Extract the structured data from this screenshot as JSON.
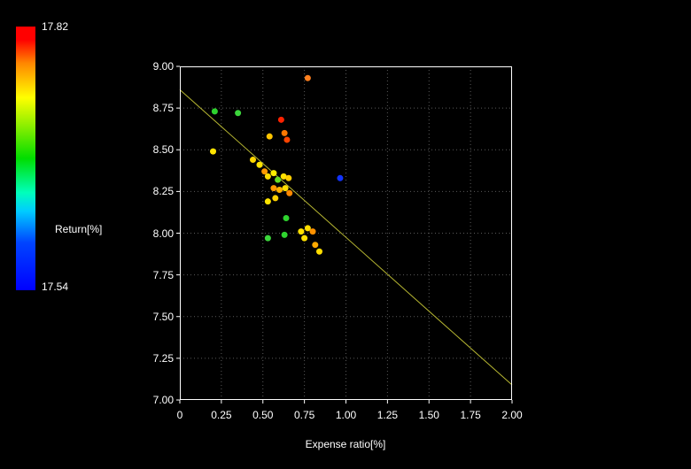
{
  "page": {
    "background": "#000000"
  },
  "colorbar": {
    "max_label": "17.82",
    "min_label": "17.54",
    "title": "Return[%]",
    "gradient": [
      "#ff0000 0%",
      "#ff0000 5%",
      "#ff8800 14%",
      "#ffff00 27%",
      "#88ee00 38%",
      "#00dd00 50%",
      "#00ffbb 63%",
      "#00ccff 70%",
      "#0044ff 82%",
      "#0000ff 100%"
    ]
  },
  "chart_data": {
    "type": "scatter",
    "title": "",
    "xlabel": "Expense ratio[%]",
    "ylabel": "Return[%]",
    "xlim": [
      0,
      2.0
    ],
    "ylim": [
      7.0,
      9.0
    ],
    "grid": true,
    "grid_color": "#5a5a5a",
    "color_scale": {
      "min": 17.54,
      "max": 17.82,
      "scheme": "rainbow (blue=low, red=high)"
    },
    "x_ticks": [
      {
        "v": 0.0,
        "label": "0"
      },
      {
        "v": 0.25,
        "label": "0.25"
      },
      {
        "v": 0.5,
        "label": "0.50"
      },
      {
        "v": 0.75,
        "label": "0.75"
      },
      {
        "v": 1.0,
        "label": "1.00"
      },
      {
        "v": 1.25,
        "label": "1.25"
      },
      {
        "v": 1.5,
        "label": "1.50"
      },
      {
        "v": 1.75,
        "label": "1.75"
      },
      {
        "v": 2.0,
        "label": "2.00"
      }
    ],
    "y_ticks": [
      {
        "v": 9.0,
        "label": "9.00"
      },
      {
        "v": 8.75,
        "label": "8.75"
      },
      {
        "v": 8.5,
        "label": "8.50"
      },
      {
        "v": 8.25,
        "label": "8.25"
      },
      {
        "v": 8.0,
        "label": "8.00"
      },
      {
        "v": 7.75,
        "label": "7.75"
      },
      {
        "v": 7.5,
        "label": "7.50"
      },
      {
        "v": 7.25,
        "label": "7.25"
      },
      {
        "v": 7.0,
        "label": "7.00"
      }
    ],
    "trend_line": {
      "x1": 0.0,
      "y1": 8.86,
      "x2": 2.0,
      "y2": 7.09,
      "color": "#b8b832"
    },
    "points": [
      {
        "x": 0.77,
        "y": 8.93,
        "c": "#ff7f1e"
      },
      {
        "x": 0.21,
        "y": 8.73,
        "c": "#2ed32e"
      },
      {
        "x": 0.35,
        "y": 8.72,
        "c": "#3cd63c"
      },
      {
        "x": 0.61,
        "y": 8.68,
        "c": "#ff2200"
      },
      {
        "x": 0.63,
        "y": 8.6,
        "c": "#ff7700"
      },
      {
        "x": 0.645,
        "y": 8.56,
        "c": "#ff4400"
      },
      {
        "x": 0.54,
        "y": 8.58,
        "c": "#ffc400"
      },
      {
        "x": 0.2,
        "y": 8.49,
        "c": "#ffe400"
      },
      {
        "x": 0.44,
        "y": 8.44,
        "c": "#ffd700"
      },
      {
        "x": 0.48,
        "y": 8.41,
        "c": "#ffe400"
      },
      {
        "x": 0.51,
        "y": 8.37,
        "c": "#ff9900"
      },
      {
        "x": 0.53,
        "y": 8.34,
        "c": "#ffdd00"
      },
      {
        "x": 0.565,
        "y": 8.36,
        "c": "#ffee00"
      },
      {
        "x": 0.59,
        "y": 8.32,
        "c": "#66dd22"
      },
      {
        "x": 0.625,
        "y": 8.34,
        "c": "#ffe000"
      },
      {
        "x": 0.655,
        "y": 8.33,
        "c": "#ffcc00"
      },
      {
        "x": 0.965,
        "y": 8.33,
        "c": "#1133ff"
      },
      {
        "x": 0.565,
        "y": 8.27,
        "c": "#ff9900"
      },
      {
        "x": 0.6,
        "y": 8.26,
        "c": "#ffb300"
      },
      {
        "x": 0.635,
        "y": 8.27,
        "c": "#ffdd00"
      },
      {
        "x": 0.66,
        "y": 8.24,
        "c": "#ff8800"
      },
      {
        "x": 0.53,
        "y": 8.19,
        "c": "#ffe400"
      },
      {
        "x": 0.575,
        "y": 8.21,
        "c": "#ffd000"
      },
      {
        "x": 0.64,
        "y": 8.09,
        "c": "#2ed32e"
      },
      {
        "x": 0.77,
        "y": 8.03,
        "c": "#ffdd00"
      },
      {
        "x": 0.8,
        "y": 8.01,
        "c": "#ff9100"
      },
      {
        "x": 0.73,
        "y": 8.01,
        "c": "#ffe000"
      },
      {
        "x": 0.63,
        "y": 7.99,
        "c": "#2fd42f"
      },
      {
        "x": 0.53,
        "y": 7.97,
        "c": "#3bd63b"
      },
      {
        "x": 0.75,
        "y": 7.97,
        "c": "#ffe000"
      },
      {
        "x": 0.815,
        "y": 7.93,
        "c": "#ffaa00"
      },
      {
        "x": 0.84,
        "y": 7.89,
        "c": "#ffdd00"
      }
    ]
  }
}
